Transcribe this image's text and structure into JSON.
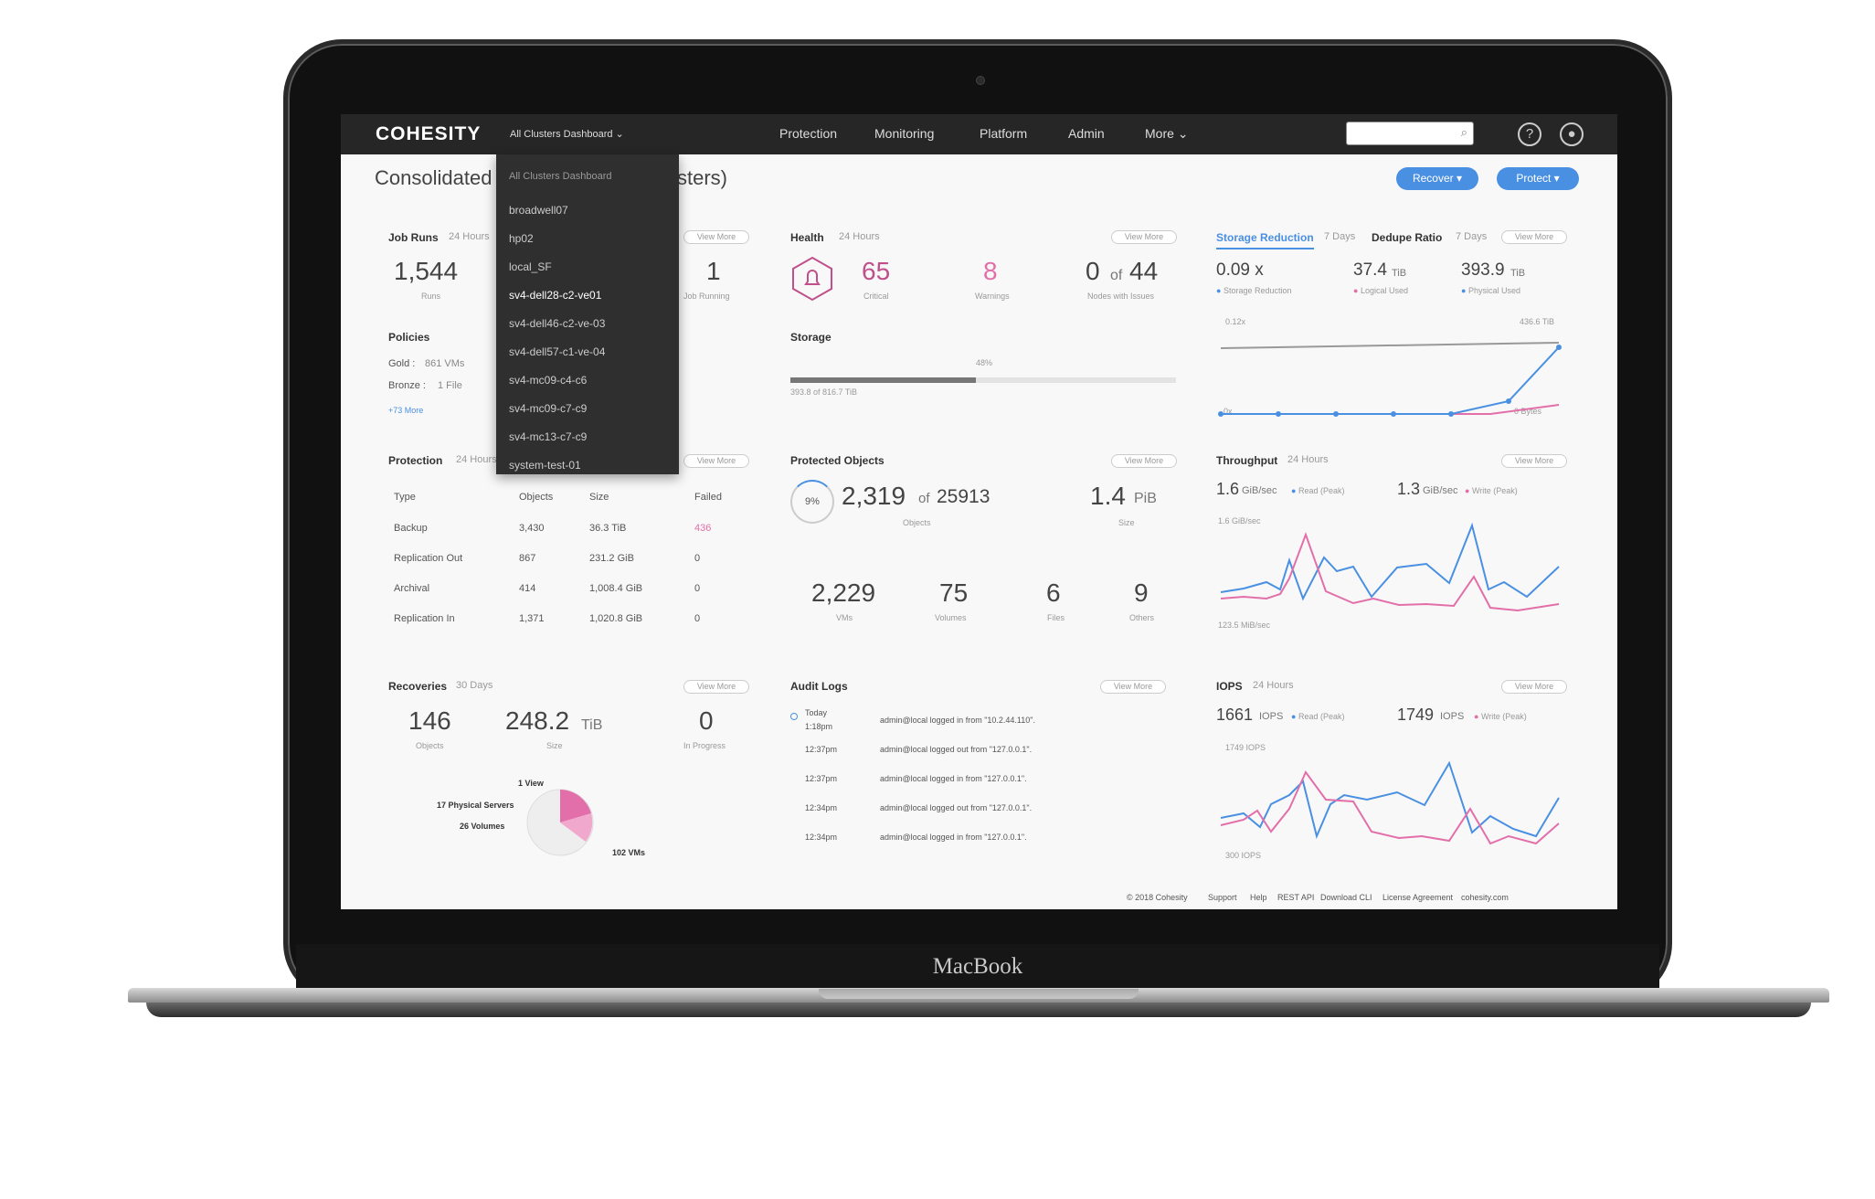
{
  "app": {
    "logo": "COHESITY",
    "dashboard_selector": "All Clusters Dashboard ⌄"
  },
  "nav": {
    "items": [
      "Protection",
      "Monitoring",
      "Platform",
      "Admin",
      "More ⌄"
    ]
  },
  "page": {
    "title_left": "Consolidated",
    "title_right": "sters)"
  },
  "buttons": {
    "recover": "Recover ▾",
    "protect": "Protect ▾"
  },
  "dropdown": {
    "items": [
      "All Clusters Dashboard",
      "broadwell07",
      "hp02",
      "local_SF",
      "sv4-dell28-c2-ve01",
      "sv4-dell46-c2-ve-03",
      "sv4-dell57-c1-ve-04",
      "sv4-mc09-c4-c6",
      "sv4-mc09-c7-c9",
      "sv4-mc13-c7-c9",
      "system-test-01"
    ]
  },
  "view_more": "View More",
  "job_runs": {
    "title": "Job Runs",
    "period": "24 Hours",
    "runs": "1,544",
    "runs_label": "Runs",
    "running": "1",
    "running_label": "Job Running"
  },
  "policies": {
    "title": "Policies",
    "gold_label": "Gold :",
    "gold_value": "861 VMs",
    "bronze_label": "Bronze :",
    "bronze_value": "1 File",
    "more": "+73 More"
  },
  "protection": {
    "title": "Protection",
    "period": "24 Hours",
    "headers": [
      "Type",
      "Objects",
      "Size",
      "Failed"
    ],
    "rows": [
      [
        "Backup",
        "3,430",
        "36.3 TiB",
        "436"
      ],
      [
        "Replication Out",
        "867",
        "231.2 GiB",
        "0"
      ],
      [
        "Archival",
        "414",
        "1,008.4 GiB",
        "0"
      ],
      [
        "Replication In",
        "1,371",
        "1,020.8 GiB",
        "0"
      ]
    ]
  },
  "recoveries": {
    "title": "Recoveries",
    "period": "30 Days",
    "objects": "146",
    "objects_label": "Objects",
    "size": "248.2",
    "size_unit": "TiB",
    "size_label": "Size",
    "inprogress": "0",
    "inprogress_label": "In Progress",
    "pie_labels": [
      "1 View",
      "17 Physical Servers",
      "26 Volumes",
      "102 VMs"
    ]
  },
  "health": {
    "title": "Health",
    "period": "24 Hours",
    "critical": "65",
    "critical_label": "Critical",
    "warnings": "8",
    "warnings_label": "Warnings",
    "nodes": "0",
    "nodes_of": "of",
    "nodes_total": "44",
    "nodes_label": "Nodes with Issues"
  },
  "storage": {
    "title": "Storage",
    "percent": "48%",
    "fill_fraction": 0.48,
    "detail": "393.8 of 816.7 TiB"
  },
  "protected_objects": {
    "title": "Protected Objects",
    "percent": "9%",
    "count": "2,319",
    "of": "of",
    "total": "25913",
    "count_label": "Objects",
    "size": "1.4",
    "size_unit": "PiB",
    "size_label": "Size",
    "breakdown": [
      {
        "value": "2,229",
        "label": "VMs"
      },
      {
        "value": "75",
        "label": "Volumes"
      },
      {
        "value": "6",
        "label": "Files"
      },
      {
        "value": "9",
        "label": "Others"
      }
    ]
  },
  "audit_logs": {
    "title": "Audit Logs",
    "view": "View More",
    "entries": [
      {
        "time": "Today",
        "time2": "1:18pm",
        "text": "admin@local logged in from \"10.2.44.110\"."
      },
      {
        "time": "12:37pm",
        "text": "admin@local logged out from \"127.0.0.1\"."
      },
      {
        "time": "12:37pm",
        "text": "admin@local logged in from \"127.0.0.1\"."
      },
      {
        "time": "12:34pm",
        "text": "admin@local logged out from \"127.0.0.1\"."
      },
      {
        "time": "12:34pm",
        "text": "admin@local logged in from \"127.0.0.1\"."
      }
    ]
  },
  "storage_reduction": {
    "tab1": "Storage Reduction",
    "tab1_period": "7 Days",
    "tab2": "Dedupe Ratio",
    "tab2_period": "7 Days",
    "reduction": "0.09 x",
    "reduction_label": "Storage Reduction",
    "logical": "37.4",
    "logical_unit": "TiB",
    "logical_label": "Logical Used",
    "physical": "393.9",
    "physical_unit": "TiB",
    "physical_label": "Physical Used",
    "top_left": "0.12x",
    "top_right": "436.6 TiB",
    "bottom_left": "0x",
    "bottom_right": "0 Bytes"
  },
  "throughput": {
    "title": "Throughput",
    "period": "24 Hours",
    "read": "1.6",
    "read_unit": "GiB/sec",
    "read_label": "Read (Peak)",
    "write": "1.3",
    "write_unit": "GiB/sec",
    "write_label": "Write (Peak)",
    "top": "1.6 GiB/sec",
    "bottom": "123.5 MiB/sec"
  },
  "iops": {
    "title": "IOPS",
    "period": "24 Hours",
    "read": "1661",
    "read_unit": "IOPS",
    "read_label": "Read (Peak)",
    "write": "1749",
    "write_unit": "IOPS",
    "write_label": "Write (Peak)",
    "top": "1749 IOPS",
    "bottom": "300 IOPS"
  },
  "footer": {
    "items": [
      "© 2018 Cohesity",
      "Support",
      "Help",
      "REST API",
      "Download CLI",
      "License Agreement",
      "cohesity.com"
    ]
  },
  "device_label": "MacBook",
  "colors": {
    "blue": "#4a90e2",
    "pink": "#e26fa9",
    "nav": "#262626"
  }
}
